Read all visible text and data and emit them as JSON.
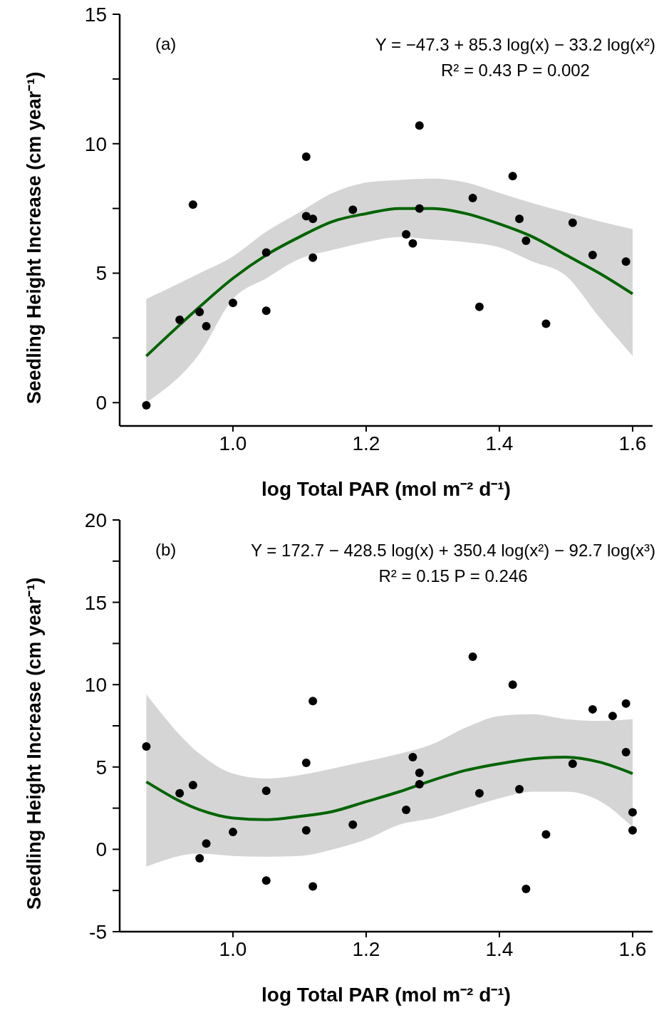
{
  "chart_data": [
    {
      "type": "scatter",
      "xlabel": "log Total PAR (mol m⁻² d⁻¹)",
      "ylabel": "Seedling Height Increase (cm year⁻¹)",
      "annotations": [
        "(a)",
        "Y = −47.3 + 85.3 log(x) − 33.2 log(x²)",
        "R² = 0.43  P = 0.002"
      ],
      "xlim": [
        0.83,
        1.63
      ],
      "xticks": [
        {
          "value": 1,
          "label": "1.0"
        },
        {
          "value": 1.2,
          "label": "1.2"
        },
        {
          "value": 1.4,
          "label": "1.4"
        },
        {
          "value": 1.6,
          "label": "1.6"
        }
      ],
      "ylim": [
        -0.9,
        15
      ],
      "yticks": [
        0,
        {
          "value": 2.5,
          "label": null
        },
        5,
        {
          "value": 7.5,
          "label": null
        },
        10,
        {
          "value": 12.5,
          "label": null
        },
        15
      ],
      "grid": false,
      "line_style": "solid",
      "series": [
        {
          "marker": "circle",
          "color": "#000000",
          "x": [
            0.87,
            0.92,
            0.94,
            0.95,
            0.96,
            1.0,
            1.05,
            1.05,
            1.11,
            1.11,
            1.12,
            1.12,
            1.18,
            1.26,
            1.27,
            1.28,
            1.28,
            1.36,
            1.37,
            1.42,
            1.43,
            1.44,
            1.47,
            1.51,
            1.54,
            1.59
          ],
          "values": [
            -0.1,
            3.2,
            7.65,
            3.5,
            2.95,
            3.85,
            3.55,
            5.8,
            9.5,
            7.2,
            7.1,
            5.6,
            7.45,
            6.5,
            6.15,
            10.7,
            7.5,
            7.9,
            3.7,
            8.75,
            7.1,
            6.25,
            3.05,
            6.95,
            5.7,
            5.45
          ]
        },
        {
          "type": "line",
          "color": "#006400",
          "x": [
            0.87,
            0.95,
            1.0,
            1.05,
            1.1,
            1.15,
            1.2,
            1.25,
            1.3,
            1.35,
            1.4,
            1.45,
            1.5,
            1.55,
            1.6
          ],
          "values": [
            1.8,
            3.7,
            4.8,
            5.7,
            6.4,
            7.0,
            7.3,
            7.5,
            7.5,
            7.3,
            6.9,
            6.4,
            5.7,
            5.0,
            4.2
          ],
          "lower": [
            0.0,
            1.9,
            4.0,
            4.8,
            5.55,
            5.9,
            6.2,
            6.4,
            6.3,
            6.2,
            6.0,
            5.45,
            4.9,
            3.3,
            1.8
          ],
          "upper": [
            4.0,
            5.0,
            5.65,
            6.6,
            7.35,
            8.1,
            8.5,
            8.6,
            8.65,
            8.5,
            8.1,
            7.7,
            7.35,
            7.0,
            6.7
          ]
        }
      ]
    },
    {
      "type": "scatter",
      "xlabel": "log Total PAR (mol m⁻² d⁻¹)",
      "ylabel": "Seedling Height Increase (cm year⁻¹)",
      "annotations": [
        "(b)",
        "Y = 172.7 − 428.5 log(x) + 350.4 log(x²) − 92.7 log(x³)",
        "R² = 0.15  P = 0.246"
      ],
      "xlim": [
        0.83,
        1.63
      ],
      "xticks": [
        {
          "value": 1,
          "label": "1.0"
        },
        {
          "value": 1.2,
          "label": "1.2"
        },
        {
          "value": 1.4,
          "label": "1.4"
        },
        {
          "value": 1.6,
          "label": "1.6"
        }
      ],
      "ylim": [
        -5,
        20
      ],
      "yticks": [
        -5,
        {
          "value": -2.5,
          "label": null
        },
        0,
        {
          "value": 2.5,
          "label": null
        },
        5,
        {
          "value": 7.5,
          "label": null
        },
        10,
        {
          "value": 12.5,
          "label": null
        },
        15,
        {
          "value": 17.5,
          "label": null
        },
        20
      ],
      "grid": false,
      "line_style": "solid",
      "series": [
        {
          "marker": "circle",
          "color": "#000000",
          "x": [
            0.87,
            0.92,
            0.94,
            0.95,
            0.96,
            1.0,
            1.05,
            1.05,
            1.11,
            1.11,
            1.12,
            1.12,
            1.18,
            1.26,
            1.27,
            1.28,
            1.28,
            1.36,
            1.37,
            1.42,
            1.43,
            1.44,
            1.47,
            1.51,
            1.54,
            1.57,
            1.59,
            1.59,
            1.6,
            1.6
          ],
          "values": [
            6.25,
            3.4,
            3.9,
            -0.55,
            0.35,
            1.05,
            3.55,
            -1.9,
            5.25,
            1.15,
            9.0,
            -2.25,
            1.5,
            2.4,
            5.6,
            4.65,
            3.95,
            11.7,
            3.4,
            10.0,
            3.65,
            -2.4,
            0.9,
            5.2,
            8.5,
            8.1,
            8.85,
            5.9,
            2.25,
            1.15
          ]
        },
        {
          "type": "line",
          "color": "#006400",
          "x": [
            0.87,
            0.95,
            1.0,
            1.05,
            1.1,
            1.15,
            1.2,
            1.25,
            1.3,
            1.35,
            1.4,
            1.45,
            1.5,
            1.55,
            1.6
          ],
          "values": [
            4.1,
            2.4,
            1.9,
            1.8,
            2.0,
            2.3,
            2.9,
            3.5,
            4.2,
            4.8,
            5.2,
            5.5,
            5.6,
            5.3,
            4.6
          ],
          "lower": [
            -1.05,
            -0.25,
            -0.4,
            -0.45,
            -0.4,
            0.0,
            0.6,
            1.5,
            1.9,
            2.5,
            3.1,
            3.5,
            3.5,
            2.95,
            1.35
          ],
          "upper": [
            9.4,
            5.8,
            4.6,
            4.3,
            4.5,
            4.9,
            5.35,
            5.8,
            6.4,
            7.4,
            8.1,
            8.2,
            7.9,
            7.8,
            7.9
          ]
        }
      ]
    }
  ]
}
